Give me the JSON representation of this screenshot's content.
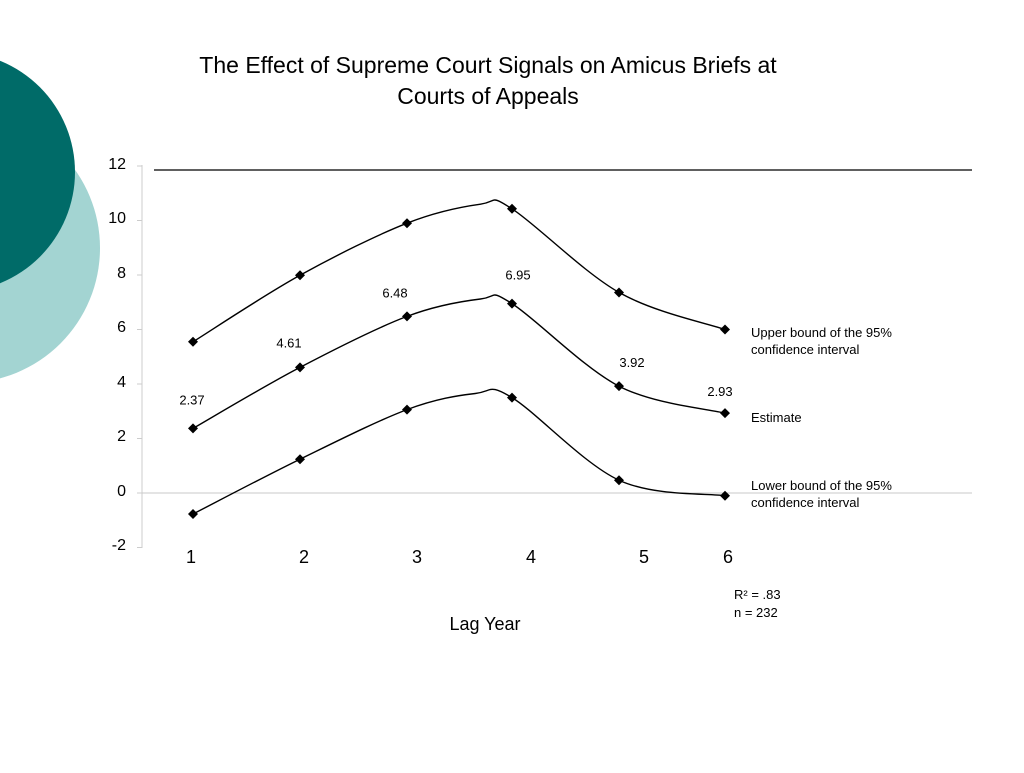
{
  "theme": {
    "teal_dark": "#006B68",
    "teal_light": "#A3D4D2"
  },
  "chart_data": {
    "type": "line",
    "title_lines": [
      "The Effect of Supreme Court Signals on Amicus Briefs at",
      "Courts of Appeals"
    ],
    "xlabel": "Lag Year",
    "ylabel": "",
    "x": [
      1,
      2,
      3,
      4,
      5,
      6
    ],
    "x_ticks": [
      "1",
      "2",
      "3",
      "4",
      "5",
      "6"
    ],
    "y_ticks": [
      "12",
      "10",
      "8",
      "6",
      "4",
      "2",
      "0",
      "-2"
    ],
    "ylim": [
      -2,
      12
    ],
    "grid": false,
    "series": [
      {
        "name": "Upper bound of the 95% confidence interval",
        "name_lines": [
          "Upper bound of the 95%",
          "confidence interval"
        ],
        "values": [
          5.55,
          7.99,
          9.9,
          10.43,
          7.36,
          6.0
        ],
        "peak": [
          3.7,
          10.6
        ]
      },
      {
        "name": "Estimate",
        "name_lines": [
          "Estimate"
        ],
        "values": [
          2.37,
          4.61,
          6.48,
          6.95,
          3.92,
          2.93
        ],
        "peak": [
          3.7,
          7.12
        ],
        "labels": [
          "2.37",
          "4.61",
          "6.48",
          "6.95",
          "3.92",
          "2.93"
        ]
      },
      {
        "name": "Lower bound of the 95% confidence interval",
        "name_lines": [
          "Lower bound of the 95%",
          "confidence interval"
        ],
        "values": [
          -0.77,
          1.24,
          3.06,
          3.5,
          0.47,
          -0.1
        ],
        "peak": [
          3.65,
          3.65
        ]
      }
    ],
    "stats": {
      "r2": "R² = .83",
      "n": "n = 232"
    }
  }
}
